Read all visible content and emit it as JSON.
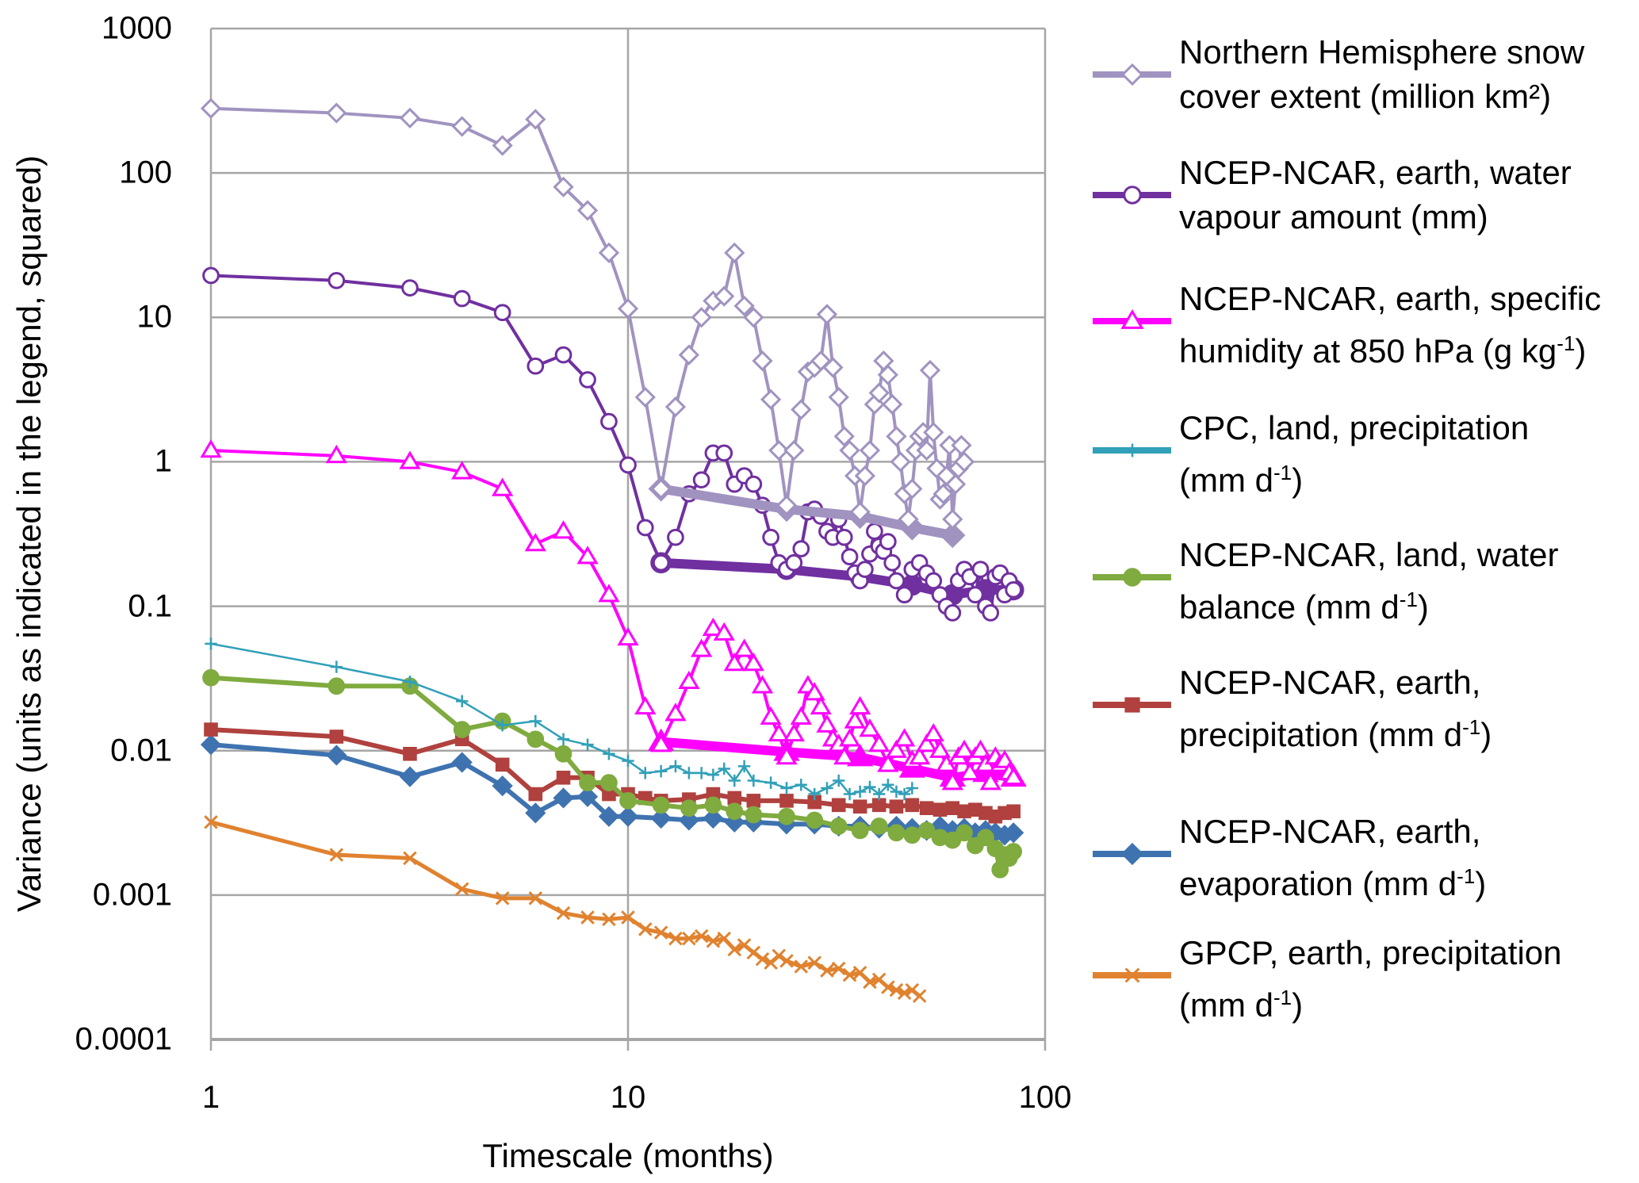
{
  "chart_data": {
    "type": "line",
    "xscale": "log",
    "yscale": "log",
    "xlim": [
      1,
      100
    ],
    "ylim": [
      0.0001,
      1000
    ],
    "xticks": [
      "1",
      "10",
      "100"
    ],
    "yticks": [
      "0.0001",
      "0.001",
      "0.01",
      "0.1",
      "1",
      "10",
      "100",
      "1000"
    ],
    "xlabel": "Timescale (months)",
    "ylabel": "Variance (units as indicated in the legend, squared)",
    "grid": true,
    "legend_position": "right",
    "series": [
      {
        "name": "Northern Hemisphere snow cover extent (million km²)",
        "legend": [
          {
            "text": "Northern Hemisphere snow"
          },
          {
            "text": "cover extent (million km²)"
          }
        ],
        "color": "#a193c0",
        "marker": "diamond-open",
        "x": [
          1,
          2,
          3,
          4,
          5,
          6,
          7,
          8,
          9,
          10,
          11,
          12,
          13,
          14,
          15,
          16,
          17,
          18,
          19,
          20,
          21,
          22,
          23,
          24,
          25,
          26,
          27,
          28,
          29,
          30,
          31,
          32,
          33,
          34,
          35,
          36,
          37,
          38,
          39,
          40,
          41,
          42,
          43,
          44,
          45,
          46,
          47,
          48,
          49,
          50,
          51,
          52,
          53,
          54,
          55,
          56,
          57,
          58,
          59,
          60,
          61,
          62,
          63,
          64
        ],
        "y": [
          280,
          260,
          240,
          210,
          155,
          235,
          80,
          55,
          28,
          11.5,
          2.8,
          0.65,
          2.4,
          5.5,
          10,
          13,
          14,
          28,
          12,
          10,
          5,
          2.7,
          1.2,
          0.5,
          1.2,
          2.3,
          4.2,
          4.5,
          5,
          10.5,
          4.5,
          2.8,
          1.5,
          1.2,
          0.8,
          0.45,
          0.8,
          1.2,
          2.5,
          3,
          5,
          4,
          2.5,
          1.5,
          1,
          0.6,
          0.4,
          0.65,
          1.2,
          1.5,
          1.6,
          1.2,
          4.3,
          1.6,
          0.9,
          0.55,
          0.6,
          0.8,
          1.3,
          0.4,
          0.7,
          0.9,
          1.3,
          1.0
        ],
        "annual_x": [
          12,
          24,
          36,
          48,
          60
        ],
        "annual_y": [
          0.65,
          0.47,
          0.42,
          0.35,
          0.31
        ]
      },
      {
        "name": "NCEP-NCAR, earth, water vapour amount (mm)",
        "legend": [
          {
            "text": "NCEP-NCAR, earth, water"
          },
          {
            "text": "vapour amount (mm)"
          }
        ],
        "color": "#7030a0",
        "marker": "circle-open",
        "x": [
          1,
          2,
          3,
          4,
          5,
          6,
          7,
          8,
          9,
          10,
          11,
          12,
          13,
          14,
          15,
          16,
          17,
          18,
          19,
          20,
          21,
          22,
          23,
          24,
          25,
          26,
          27,
          28,
          29,
          30,
          31,
          32,
          33,
          34,
          35,
          36,
          37,
          38,
          39,
          40,
          41,
          42,
          43,
          44,
          46,
          48,
          50,
          52,
          54,
          56,
          58,
          60,
          62,
          64,
          66,
          68,
          70,
          72,
          74,
          76,
          78,
          80,
          82,
          84
        ],
        "y": [
          19.5,
          18,
          16,
          13.5,
          10.8,
          4.6,
          5.5,
          3.7,
          1.9,
          0.95,
          0.35,
          0.2,
          0.3,
          0.6,
          0.75,
          1.15,
          1.15,
          0.7,
          0.8,
          0.7,
          0.5,
          0.3,
          0.2,
          0.18,
          0.2,
          0.25,
          0.45,
          0.47,
          0.42,
          0.33,
          0.3,
          0.4,
          0.3,
          0.22,
          0.17,
          0.15,
          0.18,
          0.23,
          0.33,
          0.26,
          0.24,
          0.28,
          0.2,
          0.15,
          0.12,
          0.18,
          0.2,
          0.17,
          0.15,
          0.12,
          0.1,
          0.09,
          0.15,
          0.18,
          0.16,
          0.12,
          0.18,
          0.1,
          0.09,
          0.16,
          0.17,
          0.12,
          0.15,
          0.13
        ],
        "annual_x": [
          12,
          24,
          36,
          48,
          60,
          72,
          84
        ],
        "annual_y": [
          0.2,
          0.18,
          0.16,
          0.14,
          0.12,
          0.13,
          0.13
        ]
      },
      {
        "name": "NCEP-NCAR, earth, specific humidity at 850 hPa (g kg-1)",
        "legend": [
          {
            "text": "NCEP-NCAR, earth, specific"
          },
          {
            "text": "humidity at 850 hPa (g kg",
            "sup": "-1",
            "tail": ")"
          }
        ],
        "color": "#ff00ff",
        "marker": "triangle-open",
        "x": [
          1,
          2,
          3,
          4,
          5,
          6,
          7,
          8,
          9,
          10,
          11,
          12,
          13,
          14,
          15,
          16,
          17,
          18,
          19,
          20,
          21,
          22,
          23,
          24,
          25,
          26,
          27,
          28,
          29,
          30,
          31,
          32,
          33,
          34,
          35,
          36,
          38,
          40,
          42,
          44,
          46,
          48,
          50,
          52,
          54,
          56,
          58,
          60,
          62,
          64,
          66,
          68,
          70,
          72,
          74,
          76,
          78,
          80,
          82,
          84
        ],
        "y": [
          1.2,
          1.1,
          1.0,
          0.85,
          0.65,
          0.27,
          0.33,
          0.22,
          0.12,
          0.06,
          0.02,
          0.011,
          0.018,
          0.03,
          0.05,
          0.07,
          0.065,
          0.04,
          0.05,
          0.04,
          0.028,
          0.017,
          0.013,
          0.009,
          0.013,
          0.017,
          0.028,
          0.025,
          0.02,
          0.015,
          0.012,
          0.011,
          0.009,
          0.012,
          0.016,
          0.02,
          0.014,
          0.011,
          0.008,
          0.01,
          0.012,
          0.0085,
          0.009,
          0.011,
          0.013,
          0.01,
          0.008,
          0.006,
          0.009,
          0.01,
          0.007,
          0.009,
          0.01,
          0.008,
          0.006,
          0.009,
          0.008,
          0.0085,
          0.007,
          0.0065
        ],
        "annual_x": [
          12,
          24,
          36,
          48,
          60,
          72,
          84
        ],
        "annual_y": [
          0.0115,
          0.0098,
          0.009,
          0.0075,
          0.0065,
          0.007,
          0.0065
        ]
      },
      {
        "name": "CPC, land, precipitation (mm d-1)",
        "legend": [
          {
            "text": "CPC, land, precipitation"
          },
          {
            "text": "(mm d",
            "sup": "-1",
            "tail": ")"
          }
        ],
        "color": "#31a0b8",
        "marker": "plus",
        "x": [
          1,
          2,
          3,
          4,
          5,
          6,
          7,
          8,
          9,
          10,
          11,
          12,
          13,
          14,
          15,
          16,
          17,
          18,
          19,
          20,
          22,
          24,
          26,
          28,
          30,
          32,
          34,
          36,
          38,
          40,
          42,
          44,
          46,
          48
        ],
        "y": [
          0.055,
          0.038,
          0.03,
          0.022,
          0.015,
          0.016,
          0.012,
          0.011,
          0.0095,
          0.0085,
          0.007,
          0.0072,
          0.0078,
          0.007,
          0.007,
          0.0068,
          0.0075,
          0.0062,
          0.0078,
          0.0062,
          0.006,
          0.0055,
          0.0058,
          0.005,
          0.0055,
          0.0062,
          0.005,
          0.0052,
          0.0056,
          0.005,
          0.0058,
          0.0052,
          0.005,
          0.0055
        ]
      },
      {
        "name": "NCEP-NCAR, land, water balance (mm d-1)",
        "legend": [
          {
            "text": "NCEP-NCAR, land, water"
          },
          {
            "text": "balance (mm d",
            "sup": "-1",
            "tail": ")"
          }
        ],
        "color": "#7fab3f",
        "marker": "circle-filled",
        "x": [
          1,
          2,
          3,
          4,
          5,
          6,
          7,
          8,
          9,
          10,
          12,
          14,
          16,
          18,
          20,
          24,
          28,
          32,
          36,
          40,
          44,
          48,
          52,
          56,
          60,
          64,
          68,
          72,
          76,
          78,
          80,
          82,
          84
        ],
        "y": [
          0.032,
          0.028,
          0.028,
          0.014,
          0.016,
          0.012,
          0.0095,
          0.006,
          0.006,
          0.0045,
          0.0042,
          0.004,
          0.0042,
          0.0038,
          0.0036,
          0.0035,
          0.0033,
          0.003,
          0.0028,
          0.003,
          0.0027,
          0.0026,
          0.0028,
          0.0025,
          0.0024,
          0.0027,
          0.0022,
          0.0025,
          0.0021,
          0.0015,
          0.0019,
          0.0018,
          0.002
        ]
      },
      {
        "name": "NCEP-NCAR, earth, precipitation (mm d-1)",
        "legend": [
          {
            "text": "NCEP-NCAR, earth,"
          },
          {
            "text": "precipitation (mm d",
            "sup": "-1",
            "tail": ")"
          }
        ],
        "color": "#b0413e",
        "marker": "square-filled",
        "x": [
          1,
          2,
          3,
          4,
          5,
          6,
          7,
          8,
          9,
          10,
          11,
          12,
          14,
          16,
          18,
          20,
          24,
          28,
          32,
          36,
          40,
          44,
          48,
          52,
          56,
          60,
          64,
          68,
          72,
          76,
          80,
          84
        ],
        "y": [
          0.014,
          0.0125,
          0.0095,
          0.012,
          0.008,
          0.005,
          0.0065,
          0.0065,
          0.005,
          0.005,
          0.0047,
          0.0045,
          0.0046,
          0.005,
          0.0047,
          0.0045,
          0.0045,
          0.0044,
          0.0042,
          0.0041,
          0.0042,
          0.0041,
          0.0042,
          0.004,
          0.0039,
          0.004,
          0.0038,
          0.0039,
          0.0037,
          0.0035,
          0.0037,
          0.0038
        ]
      },
      {
        "name": "NCEP-NCAR, earth, evaporation (mm d-1)",
        "legend": [
          {
            "text": "NCEP-NCAR, earth,"
          },
          {
            "text": "evaporation (mm d",
            "sup": "-1",
            "tail": ")"
          }
        ],
        "color": "#3f73b0",
        "marker": "diamond-filled",
        "x": [
          1,
          2,
          3,
          4,
          5,
          6,
          7,
          8,
          9,
          10,
          12,
          14,
          16,
          18,
          20,
          24,
          28,
          32,
          36,
          40,
          44,
          48,
          52,
          56,
          60,
          64,
          68,
          72,
          76,
          80,
          84
        ],
        "y": [
          0.011,
          0.0093,
          0.0066,
          0.0083,
          0.0057,
          0.0037,
          0.0047,
          0.0048,
          0.0035,
          0.0035,
          0.0034,
          0.0033,
          0.0034,
          0.0032,
          0.0032,
          0.0031,
          0.0031,
          0.003,
          0.003,
          0.0029,
          0.003,
          0.0029,
          0.0028,
          0.003,
          0.0028,
          0.0029,
          0.0027,
          0.0028,
          0.0027,
          0.0026,
          0.0027
        ]
      },
      {
        "name": "GPCP, earth, precipitation (mm d-1)",
        "legend": [
          {
            "text": "GPCP, earth, precipitation"
          },
          {
            "text": "(mm d",
            "sup": "-1",
            "tail": ")"
          }
        ],
        "color": "#e0822f",
        "marker": "x",
        "x": [
          1,
          2,
          3,
          4,
          5,
          6,
          7,
          8,
          9,
          10,
          11,
          12,
          13,
          14,
          15,
          16,
          17,
          18,
          19,
          20,
          21,
          22,
          23,
          24,
          26,
          28,
          30,
          32,
          34,
          36,
          38,
          40,
          42,
          44,
          46,
          48,
          50
        ],
        "y": [
          0.0032,
          0.0019,
          0.0018,
          0.0011,
          0.00095,
          0.00095,
          0.00075,
          0.0007,
          0.00068,
          0.0007,
          0.00058,
          0.00055,
          0.0005,
          0.0005,
          0.00052,
          0.00048,
          0.0005,
          0.00042,
          0.00045,
          0.0004,
          0.00036,
          0.00034,
          0.00038,
          0.00035,
          0.00032,
          0.00034,
          0.0003,
          0.00031,
          0.00028,
          0.00029,
          0.00025,
          0.00026,
          0.00023,
          0.00022,
          0.00021,
          0.00022,
          0.0002
        ]
      }
    ]
  }
}
